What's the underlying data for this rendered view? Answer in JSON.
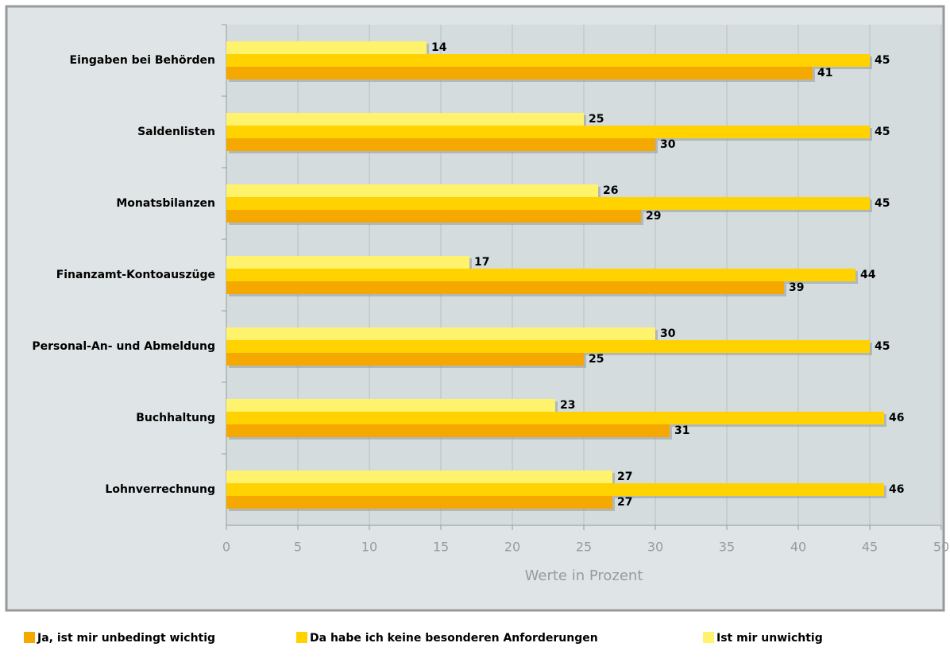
{
  "chart_data": {
    "type": "bar",
    "orientation": "horizontal",
    "categories": [
      "Eingaben bei Behörden",
      "Saldenlisten",
      "Monatsbilanzen",
      "Finanzamt-Kontoauszüge",
      "Personal-An- und Abmeldung",
      "Buchhaltung",
      "Lohnverrechnung"
    ],
    "series": [
      {
        "name": "Ja, ist mir unbedingt wichtig",
        "color": "#f5a800",
        "values": [
          41,
          30,
          29,
          39,
          25,
          31,
          27
        ]
      },
      {
        "name": "Da habe ich keine besonderen Anforderungen",
        "color": "#ffd200",
        "values": [
          45,
          45,
          45,
          44,
          45,
          46,
          46
        ]
      },
      {
        "name": "Ist mir unwichtig",
        "color": "#fff36e",
        "values": [
          14,
          25,
          26,
          17,
          30,
          23,
          27
        ]
      }
    ],
    "xlabel": "Werte in Prozent",
    "xlim": [
      0,
      50
    ],
    "xticks": [
      0,
      5,
      10,
      15,
      20,
      25,
      30,
      35,
      40,
      45,
      50
    ],
    "grid": true,
    "legend": "bottom"
  }
}
